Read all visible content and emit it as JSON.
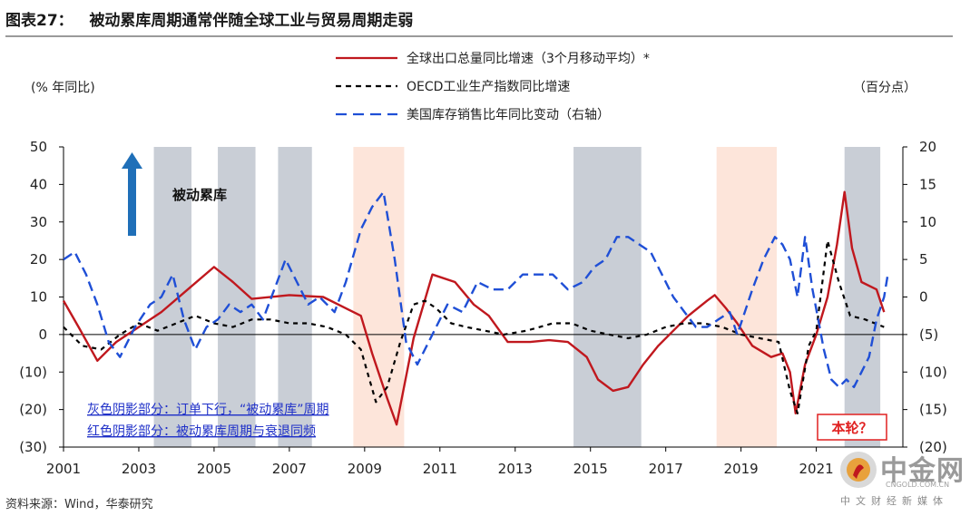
{
  "figure": {
    "label": "图表27：",
    "title": "被动累库周期通常伴随全球工业与贸易周期走弱",
    "left_unit": "(% 年同比)",
    "right_unit": "（百分点）",
    "source": "资料来源：Wind，华泰研究"
  },
  "watermark": {
    "name": "中金网",
    "url": "CNGOLD.COM.CN",
    "sub": "中文财经新媒体"
  },
  "colors": {
    "export_line": "#c0181e",
    "oecd_line": "#000000",
    "inventory_line": "#1f4fd6",
    "grey_shade": "#c9ced6",
    "red_shade": "#fde5da",
    "annotation_blue": "#1f30c8",
    "arrow_blue": "#1f6fb8"
  },
  "chart_data": {
    "type": "line",
    "title": "被动累库周期通常伴随全球工业与贸易周期走弱",
    "x_ticks": [
      "2001",
      "2003",
      "2005",
      "2007",
      "2009",
      "2011",
      "2013",
      "2015",
      "2017",
      "2019",
      "2021"
    ],
    "xlim": [
      2001,
      2023.3
    ],
    "y_left": {
      "label": "(% 年同比)",
      "lim": [
        -30,
        50
      ],
      "ticks": [
        "50",
        "40",
        "30",
        "20",
        "10",
        "0",
        "(10)",
        "(20)",
        "(30)"
      ],
      "tick_values": [
        50,
        40,
        30,
        20,
        10,
        0,
        -10,
        -20,
        -30
      ]
    },
    "y_right": {
      "label": "（百分点）",
      "lim": [
        -20,
        20
      ],
      "ticks": [
        "20",
        "15",
        "10",
        "5",
        "0",
        "(5)",
        "(10)",
        "(15)",
        "(20)"
      ],
      "tick_values": [
        20,
        15,
        10,
        5,
        0,
        -5,
        -10,
        -15,
        -20
      ]
    },
    "shaded_periods": [
      {
        "start": 2003.4,
        "end": 2004.4,
        "kind": "grey"
      },
      {
        "start": 2005.1,
        "end": 2006.1,
        "kind": "grey"
      },
      {
        "start": 2006.7,
        "end": 2007.6,
        "kind": "grey"
      },
      {
        "start": 2008.7,
        "end": 2010.05,
        "kind": "red"
      },
      {
        "start": 2014.55,
        "end": 2016.35,
        "kind": "grey"
      },
      {
        "start": 2018.35,
        "end": 2019.95,
        "kind": "red"
      },
      {
        "start": 2021.75,
        "end": 2022.7,
        "kind": "grey"
      }
    ],
    "series": [
      {
        "name": "全球出口总量同比增速（3个月移动平均）*",
        "axis": "left",
        "style": "solid",
        "points": [
          [
            2001.0,
            9
          ],
          [
            2001.4,
            2
          ],
          [
            2001.9,
            -7
          ],
          [
            2002.4,
            -2
          ],
          [
            2003.0,
            2
          ],
          [
            2003.6,
            6
          ],
          [
            2004.3,
            12
          ],
          [
            2005.0,
            18
          ],
          [
            2005.5,
            14
          ],
          [
            2006.0,
            9.5
          ],
          [
            2007.0,
            10.5
          ],
          [
            2007.9,
            10
          ],
          [
            2008.5,
            7
          ],
          [
            2008.9,
            5
          ],
          [
            2009.2,
            -5
          ],
          [
            2009.6,
            -17
          ],
          [
            2009.85,
            -24
          ],
          [
            2010.3,
            -1
          ],
          [
            2010.8,
            16
          ],
          [
            2011.4,
            14
          ],
          [
            2011.9,
            8
          ],
          [
            2012.3,
            5
          ],
          [
            2012.8,
            -2
          ],
          [
            2013.4,
            -2
          ],
          [
            2013.9,
            -1.5
          ],
          [
            2014.4,
            -2
          ],
          [
            2014.9,
            -6
          ],
          [
            2015.2,
            -12
          ],
          [
            2015.6,
            -15
          ],
          [
            2016.0,
            -14
          ],
          [
            2016.4,
            -8
          ],
          [
            2016.8,
            -3
          ],
          [
            2017.2,
            1
          ],
          [
            2017.6,
            5
          ],
          [
            2018.1,
            9
          ],
          [
            2018.3,
            10.5
          ],
          [
            2018.6,
            7
          ],
          [
            2018.9,
            3
          ],
          [
            2019.3,
            -3
          ],
          [
            2019.8,
            -6
          ],
          [
            2020.1,
            -5
          ],
          [
            2020.3,
            -10
          ],
          [
            2020.45,
            -21
          ],
          [
            2020.7,
            -8
          ],
          [
            2021.0,
            0
          ],
          [
            2021.3,
            10
          ],
          [
            2021.55,
            24
          ],
          [
            2021.75,
            38
          ],
          [
            2021.95,
            23
          ],
          [
            2022.2,
            14
          ],
          [
            2022.6,
            12
          ],
          [
            2022.8,
            6
          ]
        ]
      },
      {
        "name": "OECD工业生产指数同比增速",
        "axis": "left",
        "style": "dash",
        "points": [
          [
            2001.0,
            2
          ],
          [
            2001.5,
            -3
          ],
          [
            2002.0,
            -4
          ],
          [
            2002.5,
            0
          ],
          [
            2003.0,
            3
          ],
          [
            2003.5,
            1
          ],
          [
            2004.0,
            3
          ],
          [
            2004.5,
            5
          ],
          [
            2005.0,
            3
          ],
          [
            2005.5,
            2
          ],
          [
            2006.0,
            4
          ],
          [
            2006.5,
            4
          ],
          [
            2007.0,
            3
          ],
          [
            2007.5,
            3
          ],
          [
            2008.0,
            2
          ],
          [
            2008.5,
            0
          ],
          [
            2008.9,
            -4
          ],
          [
            2009.3,
            -18
          ],
          [
            2009.6,
            -14
          ],
          [
            2009.95,
            -2
          ],
          [
            2010.3,
            8
          ],
          [
            2010.6,
            9
          ],
          [
            2010.9,
            7
          ],
          [
            2011.3,
            3
          ],
          [
            2011.7,
            2
          ],
          [
            2012.2,
            1
          ],
          [
            2012.7,
            0
          ],
          [
            2013.3,
            1
          ],
          [
            2014.0,
            3
          ],
          [
            2014.5,
            3
          ],
          [
            2015.0,
            1
          ],
          [
            2015.5,
            0
          ],
          [
            2016.0,
            -1
          ],
          [
            2016.5,
            0
          ],
          [
            2017.0,
            2
          ],
          [
            2017.5,
            3
          ],
          [
            2018.0,
            3
          ],
          [
            2018.5,
            2
          ],
          [
            2019.0,
            0
          ],
          [
            2019.5,
            -1
          ],
          [
            2020.0,
            -2
          ],
          [
            2020.3,
            -15
          ],
          [
            2020.5,
            -21
          ],
          [
            2020.8,
            -3
          ],
          [
            2021.0,
            1
          ],
          [
            2021.3,
            25
          ],
          [
            2021.6,
            14
          ],
          [
            2021.9,
            5
          ],
          [
            2022.3,
            4
          ],
          [
            2022.8,
            2
          ]
        ]
      },
      {
        "name": "美国库存销售比年同比变动（右轴）",
        "axis": "right",
        "style": "longdash",
        "points": [
          [
            2001.0,
            5
          ],
          [
            2001.3,
            6
          ],
          [
            2001.6,
            3
          ],
          [
            2001.9,
            -1
          ],
          [
            2002.2,
            -6
          ],
          [
            2002.5,
            -8
          ],
          [
            2002.9,
            -4
          ],
          [
            2003.3,
            -1
          ],
          [
            2003.6,
            0
          ],
          [
            2003.9,
            3
          ],
          [
            2004.2,
            -3
          ],
          [
            2004.5,
            -7
          ],
          [
            2004.8,
            -4
          ],
          [
            2005.1,
            -3
          ],
          [
            2005.4,
            -1
          ],
          [
            2005.7,
            -2
          ],
          [
            2006.0,
            -1
          ],
          [
            2006.3,
            -3
          ],
          [
            2006.6,
            1
          ],
          [
            2006.9,
            5
          ],
          [
            2007.2,
            2
          ],
          [
            2007.5,
            -1
          ],
          [
            2007.8,
            0
          ],
          [
            2008.2,
            -2
          ],
          [
            2008.5,
            2
          ],
          [
            2008.9,
            9
          ],
          [
            2009.2,
            12
          ],
          [
            2009.5,
            14
          ],
          [
            2009.8,
            5
          ],
          [
            2010.1,
            -6
          ],
          [
            2010.4,
            -9
          ],
          [
            2010.8,
            -5
          ],
          [
            2011.2,
            -1
          ],
          [
            2011.6,
            -2
          ],
          [
            2012.0,
            2
          ],
          [
            2012.4,
            1
          ],
          [
            2012.8,
            1
          ],
          [
            2013.2,
            3
          ],
          [
            2013.6,
            3
          ],
          [
            2014.0,
            3
          ],
          [
            2014.4,
            1
          ],
          [
            2014.8,
            2
          ],
          [
            2015.1,
            4
          ],
          [
            2015.4,
            5
          ],
          [
            2015.7,
            8
          ],
          [
            2016.0,
            8
          ],
          [
            2016.3,
            7
          ],
          [
            2016.6,
            6
          ],
          [
            2016.9,
            3
          ],
          [
            2017.2,
            0
          ],
          [
            2017.5,
            -2
          ],
          [
            2017.8,
            -4
          ],
          [
            2018.1,
            -4
          ],
          [
            2018.4,
            -3
          ],
          [
            2018.7,
            -2
          ],
          [
            2018.9,
            -5
          ],
          [
            2019.1,
            -2
          ],
          [
            2019.3,
            1
          ],
          [
            2019.6,
            5
          ],
          [
            2019.9,
            8
          ],
          [
            2020.1,
            7
          ],
          [
            2020.3,
            5
          ],
          [
            2020.5,
            0
          ],
          [
            2020.7,
            8
          ],
          [
            2020.9,
            1
          ],
          [
            2021.05,
            -3
          ],
          [
            2021.2,
            -7
          ],
          [
            2021.4,
            -11
          ],
          [
            2021.6,
            -12
          ],
          [
            2021.8,
            -11
          ],
          [
            2022.0,
            -12
          ],
          [
            2022.2,
            -10
          ],
          [
            2022.4,
            -8
          ],
          [
            2022.6,
            -3
          ],
          [
            2022.8,
            0
          ],
          [
            2022.9,
            3
          ]
        ]
      }
    ],
    "annotations": {
      "passive_label": "被动累库",
      "grey_note": "灰色阴影部分：订单下行，“被动累库”周期",
      "red_note": "红色阴影部分：被动累库周期与衰退同频",
      "current_label": "本轮？"
    }
  }
}
